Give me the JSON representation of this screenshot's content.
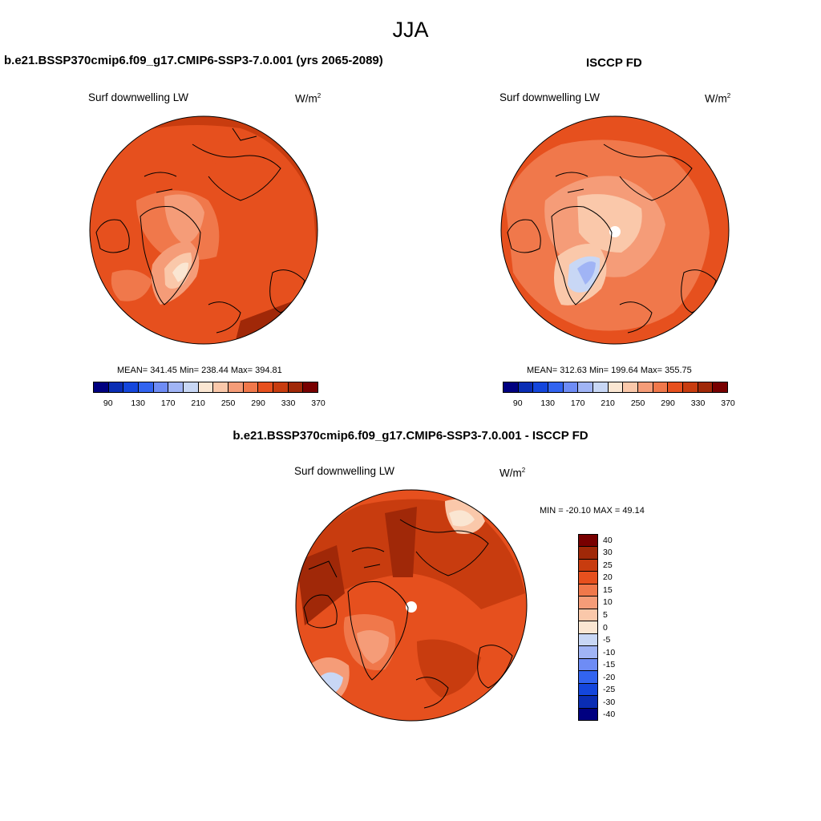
{
  "main_title": "JJA",
  "palette_abs": [
    "#000080",
    "#0a2db4",
    "#1446dc",
    "#3264f0",
    "#6e8cf5",
    "#a0b4f5",
    "#c8d7f5",
    "#fae6d2",
    "#fac8aa",
    "#f59c78",
    "#f0784b",
    "#e6501e",
    "#c83c0f",
    "#a02808",
    "#780000"
  ],
  "palette_diff": [
    "#780000",
    "#a02808",
    "#c83c0f",
    "#e6501e",
    "#f0784b",
    "#f59c78",
    "#fac8aa",
    "#fae6d2",
    "#c8d7f5",
    "#a0b4f5",
    "#6e8cf5",
    "#3264f0",
    "#1446dc",
    "#0a2db4",
    "#000080"
  ],
  "panels": {
    "model": {
      "title": "b.e21.BSSP370cmip6.f09_g17.CMIP6-SSP3-7.0.001 (yrs 2065-2089)",
      "variable": "Surf downwelling LW",
      "units_base": "W/m",
      "units_exp": "2",
      "stats": "MEAN= 341.45  Min= 238.44  Max= 394.81",
      "colorbar_ticks": [
        "90",
        "130",
        "170",
        "210",
        "250",
        "290",
        "330",
        "370"
      ]
    },
    "obs": {
      "title": "ISCCP FD",
      "variable": "Surf downwelling LW",
      "units_base": "W/m",
      "units_exp": "2",
      "stats": "MEAN= 312.63  Min= 199.64  Max= 355.75",
      "colorbar_ticks": [
        "90",
        "130",
        "170",
        "210",
        "250",
        "290",
        "330",
        "370"
      ]
    },
    "diff": {
      "title": "b.e21.BSSP370cmip6.f09_g17.CMIP6-SSP3-7.0.001 - ISCCP FD",
      "variable": "Surf downwelling LW",
      "units_base": "W/m",
      "units_exp": "2",
      "stats": "MIN = -20.10 MAX =  49.14",
      "colorbar_ticks": [
        "40",
        "30",
        "25",
        "20",
        "15",
        "10",
        "5",
        "0",
        "-5",
        "-10",
        "-15",
        "-20",
        "-25",
        "-30",
        "-40"
      ]
    }
  }
}
